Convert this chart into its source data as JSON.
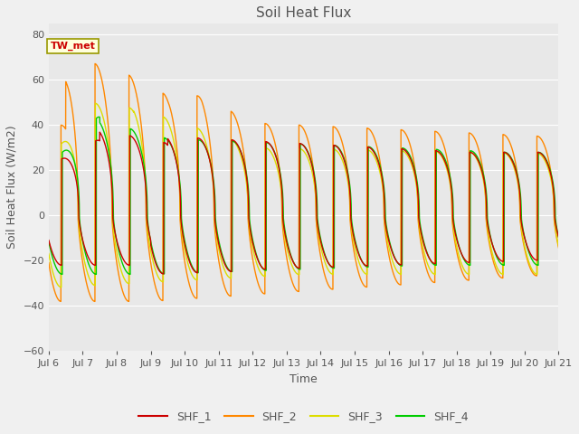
{
  "title": "Soil Heat Flux",
  "xlabel": "Time",
  "ylabel": "Soil Heat Flux (W/m2)",
  "xlim_days": [
    6,
    21
  ],
  "ylim": [
    -60,
    85
  ],
  "yticks": [
    -60,
    -40,
    -20,
    0,
    20,
    40,
    60,
    80
  ],
  "background_color": "#f0f0f0",
  "plot_bg_color": "#e8e8e8",
  "series_colors": {
    "SHF_1": "#cc0000",
    "SHF_2": "#ff8800",
    "SHF_3": "#dddd00",
    "SHF_4": "#00cc00"
  },
  "annotation_text": "TW_met",
  "annotation_color": "#cc0000",
  "annotation_bg": "#ffffdd",
  "annotation_border": "#999900",
  "xtick_labels": [
    "Jul 6",
    "Jul 7",
    "Jul 8",
    "Jul 9",
    "Jul 10",
    "Jul 11",
    "Jul 12",
    "Jul 13",
    "Jul 14",
    "Jul 15",
    "Jul 16",
    "Jul 17",
    "Jul 18",
    "Jul 19",
    "Jul 20",
    "Jul 21"
  ],
  "font_color": "#555555",
  "grid_color": "#ffffff",
  "figsize": [
    6.4,
    4.8
  ],
  "dpi": 100
}
